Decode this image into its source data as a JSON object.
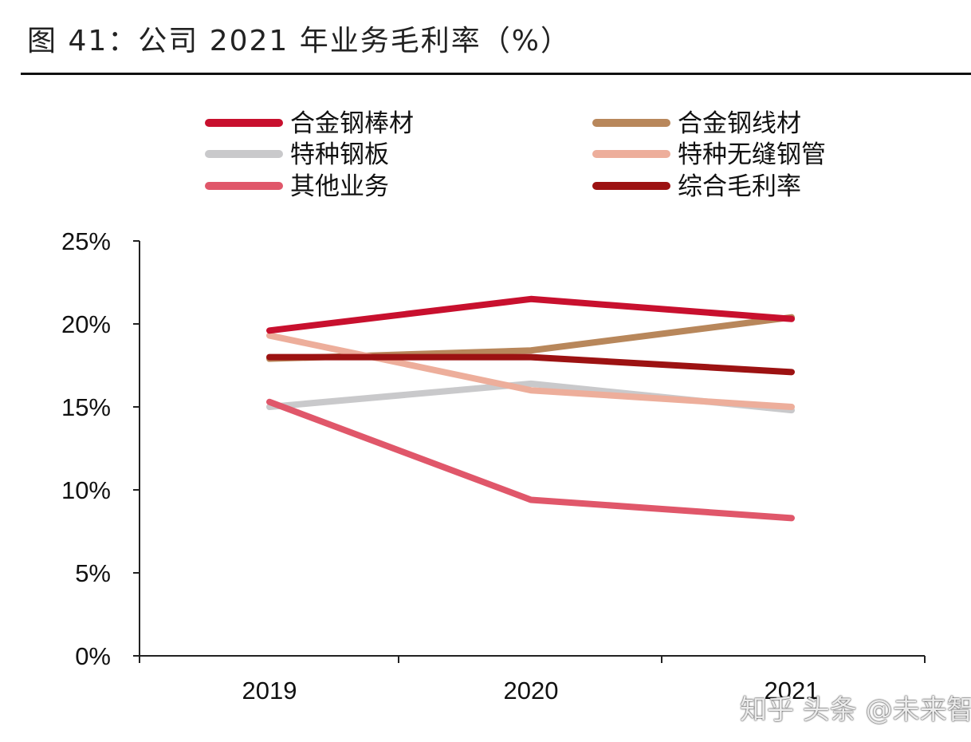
{
  "figure_title": "图 41：公司 2021 年业务毛利率（%）",
  "watermark": "知乎 头条 @未来智库",
  "chart_data": {
    "type": "line",
    "title": "图 41：公司 2021 年业务毛利率（%）",
    "categories": [
      "2019",
      "2020",
      "2021"
    ],
    "ylim": [
      0,
      25
    ],
    "yticks": [
      0,
      5,
      10,
      15,
      20,
      25
    ],
    "ytick_labels": [
      "0%",
      "5%",
      "10%",
      "15%",
      "20%",
      "25%"
    ],
    "grid": false,
    "legend_position": "top",
    "series": [
      {
        "name": "合金钢棒材",
        "color": "#c8102e",
        "values": [
          19.6,
          21.5,
          20.3
        ]
      },
      {
        "name": "合金钢线材",
        "color": "#b8875b",
        "values": [
          17.9,
          18.4,
          20.4
        ]
      },
      {
        "name": "特种钢板",
        "color": "#c9c9cb",
        "values": [
          15.0,
          16.4,
          14.8
        ]
      },
      {
        "name": "特种无缝钢管",
        "color": "#edae9b",
        "values": [
          19.3,
          16.0,
          15.0
        ]
      },
      {
        "name": "其他业务",
        "color": "#e0576a",
        "values": [
          15.3,
          9.4,
          8.3
        ]
      },
      {
        "name": "综合毛利率",
        "color": "#9c1212",
        "values": [
          18.0,
          18.0,
          17.1
        ]
      }
    ]
  }
}
